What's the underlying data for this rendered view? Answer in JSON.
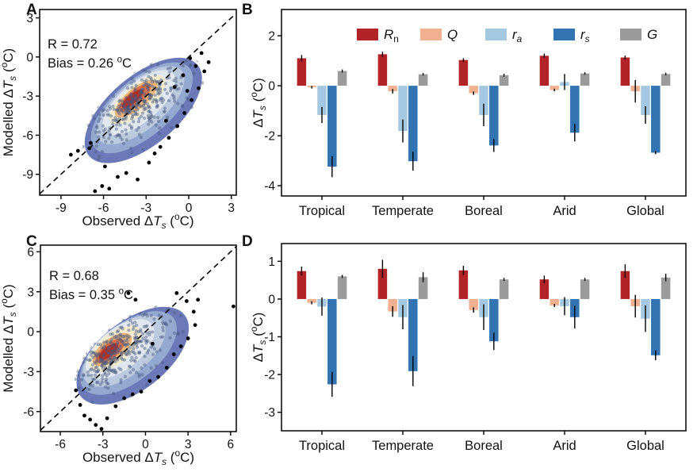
{
  "panels": {
    "a": {
      "label": "A"
    },
    "b": {
      "label": "B"
    },
    "c": {
      "label": "C"
    },
    "d": {
      "label": "D"
    }
  },
  "colors": {
    "rn": "#b22328",
    "q": "#f1b090",
    "ra": "#a5c8e1",
    "rs": "#3273b1",
    "g": "#9b9b9b",
    "density_levels": [
      "#6b79b8",
      "#94a9cf",
      "#bccadf",
      "#e1e7ee",
      "#f2ebd0",
      "#e9b57d",
      "#d8704a",
      "#b03125"
    ],
    "dot": "rgba(72,88,129,0.45)",
    "outlier_dot": "#000000",
    "axis": "#111111"
  },
  "chart_data": [
    {
      "id": "A",
      "type": "scatter",
      "title": "",
      "xlabel": "Observed ΔTs (°C)",
      "ylabel": "Modelled ΔTs (°C)",
      "xlabel_parts": [
        [
          "t",
          "Observed Δ"
        ],
        [
          "i",
          "T"
        ],
        [
          "subi",
          "s"
        ],
        [
          "t",
          " ("
        ],
        [
          "sup",
          "o"
        ],
        [
          "t",
          "C)"
        ]
      ],
      "ylabel_parts": [
        [
          "t",
          "Modelled Δ"
        ],
        [
          "i",
          "T"
        ],
        [
          "subi",
          "s"
        ],
        [
          "t",
          " ("
        ],
        [
          "sup",
          "o"
        ],
        [
          "t",
          "C)"
        ]
      ],
      "xlim": [
        -10.5,
        3.35
      ],
      "ylim": [
        -10.6,
        3.64
      ],
      "xticks": [
        -9,
        -6,
        -3,
        0,
        3
      ],
      "yticks": [
        3,
        0,
        -3,
        -6,
        -9
      ],
      "stats": {
        "r": "R = 0.72",
        "bias_prefix": "Bias = 0.26 ",
        "bias_sup": "o",
        "bias_unit": "C"
      },
      "identity_line": true,
      "density_angle": -40,
      "density_levels": [
        {
          "c": [
            -3.2,
            -4.1
          ],
          "a": 5.2,
          "b": 2.55
        },
        {
          "c": [
            -3.3,
            -3.9
          ],
          "a": 4.55,
          "b": 2.1
        },
        {
          "c": [
            -3.4,
            -3.7
          ],
          "a": 3.95,
          "b": 1.75
        },
        {
          "c": [
            -3.5,
            -3.5
          ],
          "a": 3.3,
          "b": 1.42
        },
        {
          "c": [
            -3.6,
            -3.3
          ],
          "a": 2.55,
          "b": 1.05
        },
        {
          "c": [
            -3.7,
            -3.2
          ],
          "a": 1.95,
          "b": 0.75
        },
        {
          "c": [
            -3.8,
            -3.15
          ],
          "a": 1.45,
          "b": 0.52
        },
        {
          "c": [
            -3.95,
            -3.2
          ],
          "a": 1.0,
          "b": 0.34
        }
      ],
      "cloud": {
        "seed": 7,
        "theta": 40,
        "core": {
          "c": [
            -3.6,
            -3.3
          ],
          "sd": [
            1.5,
            0.62
          ],
          "n": 185
        },
        "broad": {
          "c": [
            -3.2,
            -4.1
          ],
          "sd": [
            2.4,
            1.1
          ],
          "n": 150
        }
      },
      "outliers": [
        [
          -8.3,
          -7.5
        ],
        [
          -7.8,
          -7.2
        ],
        [
          -7.0,
          -7.0
        ],
        [
          -6.9,
          -6.6
        ],
        [
          -6.6,
          -10.3
        ],
        [
          -6.1,
          -9.9
        ],
        [
          -5.9,
          -8.4
        ],
        [
          -5.6,
          -10.1
        ],
        [
          -5.0,
          -9.2
        ],
        [
          -4.4,
          -8.9
        ],
        [
          -3.6,
          -9.4
        ],
        [
          -2.8,
          -8.1
        ],
        [
          -2.4,
          -7.4
        ],
        [
          -2.0,
          -6.9
        ],
        [
          -1.6,
          -4.9
        ],
        [
          -1.4,
          -6.2
        ],
        [
          -1.0,
          -2.3
        ],
        [
          -0.8,
          -5.3
        ],
        [
          -0.4,
          -1.4
        ],
        [
          -0.3,
          -4.3
        ],
        [
          -0.1,
          -2.6
        ],
        [
          0.1,
          -0.1
        ],
        [
          0.2,
          -3.3
        ],
        [
          0.7,
          -2.4
        ],
        [
          0.9,
          0.3
        ],
        [
          1.1,
          -1.1
        ],
        [
          1.4,
          -0.4
        ],
        [
          0.5,
          -0.7
        ]
      ]
    },
    {
      "id": "B",
      "type": "bar",
      "title": "",
      "xlabel": "",
      "ylabel": "ΔTs (°C)",
      "ylabel_parts": [
        [
          "t",
          "Δ"
        ],
        [
          "i",
          "T"
        ],
        [
          "subi",
          "s"
        ],
        [
          "t",
          " ("
        ],
        [
          "sup",
          "o"
        ],
        [
          "t",
          "C)"
        ]
      ],
      "categories": [
        "Tropical",
        "Temperate",
        "Boreal",
        "Arid",
        "Global"
      ],
      "yticks": [
        2,
        0,
        -2,
        -4
      ],
      "ylim": [
        -4.41,
        3.05
      ],
      "legend": true,
      "legend_position": "top-inside",
      "series": [
        {
          "name": "Rn",
          "label_parts": [
            [
              "i",
              "R"
            ],
            [
              "sub",
              "n"
            ]
          ],
          "color": "#b22328",
          "values": [
            1.1,
            1.26,
            1.03,
            1.2,
            1.13
          ],
          "errors": [
            0.13,
            0.1,
            0.07,
            0.09,
            0.08
          ]
        },
        {
          "name": "Q",
          "label_parts": [
            [
              "i",
              "Q"
            ]
          ],
          "color": "#f1b090",
          "values": [
            -0.06,
            -0.22,
            -0.3,
            -0.17,
            -0.22
          ],
          "errors": [
            0.05,
            0.09,
            0.07,
            0.05,
            0.45
          ]
        },
        {
          "name": "ra",
          "label_parts": [
            [
              "i",
              "r"
            ],
            [
              "subi",
              "a"
            ]
          ],
          "color": "#a5c8e1",
          "values": [
            -1.17,
            -1.81,
            -1.17,
            0.15,
            -1.17
          ],
          "errors": [
            0.32,
            0.46,
            0.45,
            0.32,
            0.35
          ]
        },
        {
          "name": "rs",
          "label_parts": [
            [
              "i",
              "r"
            ],
            [
              "subi",
              "s"
            ]
          ],
          "color": "#3273b1",
          "values": [
            -3.24,
            -3.02,
            -2.39,
            -1.88,
            -2.68
          ],
          "errors": [
            0.42,
            0.38,
            0.26,
            0.35,
            0.06
          ]
        },
        {
          "name": "G",
          "label_parts": [
            [
              "i",
              "G"
            ]
          ],
          "color": "#9b9b9b",
          "values": [
            0.59,
            0.46,
            0.42,
            0.49,
            0.47
          ],
          "errors": [
            0.06,
            0.05,
            0.06,
            0.05,
            0.05
          ]
        }
      ]
    },
    {
      "id": "C",
      "type": "scatter",
      "title": "",
      "xlabel": "Observed ΔTs (°C)",
      "ylabel": "Modelled ΔTs (°C)",
      "xlabel_parts": [
        [
          "t",
          "Observed Δ"
        ],
        [
          "i",
          "T"
        ],
        [
          "subi",
          "s"
        ],
        [
          "t",
          " ("
        ],
        [
          "sup",
          "o"
        ],
        [
          "t",
          "C)"
        ]
      ],
      "ylabel_parts": [
        [
          "t",
          "Modelled Δ"
        ],
        [
          "i",
          "T"
        ],
        [
          "subi",
          "s"
        ],
        [
          "t",
          " ("
        ],
        [
          "sup",
          "o"
        ],
        [
          "t",
          "C)"
        ]
      ],
      "xlim": [
        -7.4,
        6.4
      ],
      "ylim": [
        -7.5,
        6.5
      ],
      "xticks": [
        -6,
        -3,
        0,
        3,
        6
      ],
      "yticks": [
        6,
        3,
        0,
        -3,
        -6
      ],
      "stats": {
        "r": "R = 0.68",
        "bias_prefix": "Bias = 0.35 ",
        "bias_sup": "o",
        "bias_unit": "C"
      },
      "identity_line": true,
      "density_angle": -38,
      "density_levels": [
        {
          "c": [
            -0.9,
            -1.8
          ],
          "a": 4.8,
          "b": 2.5
        },
        {
          "c": [
            -1.2,
            -1.6
          ],
          "a": 4.15,
          "b": 2.1
        },
        {
          "c": [
            -1.5,
            -1.45
          ],
          "a": 3.55,
          "b": 1.8
        },
        {
          "c": [
            -1.8,
            -1.3
          ],
          "a": 2.95,
          "b": 1.5
        },
        {
          "c": [
            -2.15,
            -1.25
          ],
          "a": 2.3,
          "b": 1.1
        },
        {
          "c": [
            -2.35,
            -1.35
          ],
          "a": 1.7,
          "b": 0.8
        },
        {
          "c": [
            -2.5,
            -1.45
          ],
          "a": 1.25,
          "b": 0.55
        },
        {
          "c": [
            -2.6,
            -1.5
          ],
          "a": 0.85,
          "b": 0.37
        }
      ],
      "cloud": {
        "seed": 11,
        "theta": 38,
        "core": {
          "c": [
            -2.3,
            -1.4
          ],
          "sd": [
            1.5,
            0.65
          ],
          "n": 185
        },
        "broad": {
          "c": [
            -1.2,
            -2.0
          ],
          "sd": [
            2.3,
            1.15
          ],
          "n": 150
        }
      },
      "outliers": [
        [
          -4.9,
          -4.4
        ],
        [
          -4.6,
          -5.5
        ],
        [
          -4.3,
          -6.3
        ],
        [
          -3.9,
          -6.6
        ],
        [
          -3.5,
          -7.0
        ],
        [
          -3.1,
          -7.3
        ],
        [
          -2.7,
          -6.5
        ],
        [
          -2.1,
          -5.6
        ],
        [
          -1.5,
          -5.0
        ],
        [
          -0.9,
          -4.7
        ],
        [
          -0.3,
          -4.5
        ],
        [
          0.3,
          -3.7
        ],
        [
          0.9,
          -3.4
        ],
        [
          1.5,
          -2.7
        ],
        [
          2.0,
          -1.7
        ],
        [
          2.5,
          -1.1
        ],
        [
          3.0,
          -0.5
        ],
        [
          3.5,
          0.5
        ],
        [
          3.4,
          1.5
        ],
        [
          3.7,
          2.4
        ],
        [
          2.9,
          2.3
        ],
        [
          2.2,
          2.9
        ],
        [
          -1.2,
          2.9
        ],
        [
          -0.7,
          2.4
        ],
        [
          6.2,
          1.9
        ],
        [
          0.5,
          -0.9
        ]
      ]
    },
    {
      "id": "D",
      "type": "bar",
      "title": "",
      "xlabel": "",
      "ylabel": "ΔTs (°C)",
      "ylabel_parts": [
        [
          "t",
          "Δ"
        ],
        [
          "i",
          "T"
        ],
        [
          "subi",
          "s"
        ],
        [
          "t",
          " ("
        ],
        [
          "sup",
          "o"
        ],
        [
          "t",
          "C)"
        ]
      ],
      "categories": [
        "Tropical",
        "Temperate",
        "Boreal",
        "Arid",
        "Global"
      ],
      "yticks": [
        1,
        0,
        -1,
        -2,
        -3
      ],
      "ylim": [
        -3.49,
        1.47
      ],
      "legend": false,
      "series": [
        {
          "name": "Rn",
          "label_parts": [
            [
              "i",
              "R"
            ],
            [
              "sub",
              "n"
            ]
          ],
          "color": "#b22328",
          "values": [
            0.74,
            0.8,
            0.76,
            0.52,
            0.74
          ],
          "errors": [
            0.12,
            0.24,
            0.12,
            0.1,
            0.18
          ]
        },
        {
          "name": "Q",
          "label_parts": [
            [
              "i",
              "Q"
            ]
          ],
          "color": "#f1b090",
          "values": [
            -0.1,
            -0.33,
            -0.29,
            -0.17,
            -0.19
          ],
          "errors": [
            0.04,
            0.14,
            0.07,
            0.04,
            0.3
          ]
        },
        {
          "name": "ra",
          "label_parts": [
            [
              "i",
              "r"
            ],
            [
              "subi",
              "a"
            ]
          ],
          "color": "#a5c8e1",
          "values": [
            -0.2,
            -0.48,
            -0.48,
            -0.19,
            -0.52
          ],
          "errors": [
            0.24,
            0.32,
            0.34,
            0.24,
            0.35
          ]
        },
        {
          "name": "rs",
          "label_parts": [
            [
              "i",
              "r"
            ],
            [
              "subi",
              "s"
            ]
          ],
          "color": "#3273b1",
          "values": [
            -2.26,
            -1.91,
            -1.12,
            -0.48,
            -1.49
          ],
          "errors": [
            0.33,
            0.4,
            0.23,
            0.3,
            0.13
          ]
        },
        {
          "name": "G",
          "label_parts": [
            [
              "i",
              "G"
            ]
          ],
          "color": "#9b9b9b",
          "values": [
            0.6,
            0.58,
            0.52,
            0.52,
            0.57
          ],
          "errors": [
            0.04,
            0.13,
            0.04,
            0.04,
            0.1
          ]
        }
      ]
    }
  ]
}
